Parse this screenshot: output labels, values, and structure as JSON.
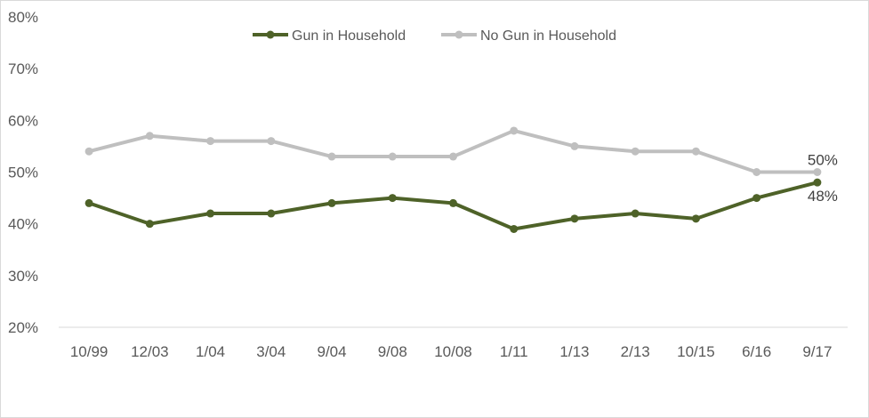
{
  "chart_data": {
    "type": "line",
    "title": "",
    "xlabel": "",
    "ylabel": "",
    "categories": [
      "10/99",
      "12/03",
      "1/04",
      "3/04",
      "9/04",
      "9/08",
      "10/08",
      "1/11",
      "1/13",
      "2/13",
      "10/15",
      "6/16",
      "9/17"
    ],
    "ylim": [
      20,
      80
    ],
    "yticks": [
      "20%",
      "30%",
      "40%",
      "50%",
      "60%",
      "70%",
      "80%"
    ],
    "legend_position": "top",
    "series": [
      {
        "name": "Gun in Household",
        "color": "#4e6228",
        "values": [
          44,
          40,
          42,
          42,
          44,
          45,
          44,
          39,
          41,
          42,
          41,
          45,
          48
        ]
      },
      {
        "name": "No Gun in Household",
        "color": "#bfbfbf",
        "values": [
          54,
          57,
          56,
          56,
          53,
          53,
          53,
          58,
          55,
          54,
          54,
          50,
          50
        ]
      }
    ],
    "annotations": {
      "gun_end_label": "48%",
      "no_gun_end_label": "50%"
    },
    "grid": false
  }
}
